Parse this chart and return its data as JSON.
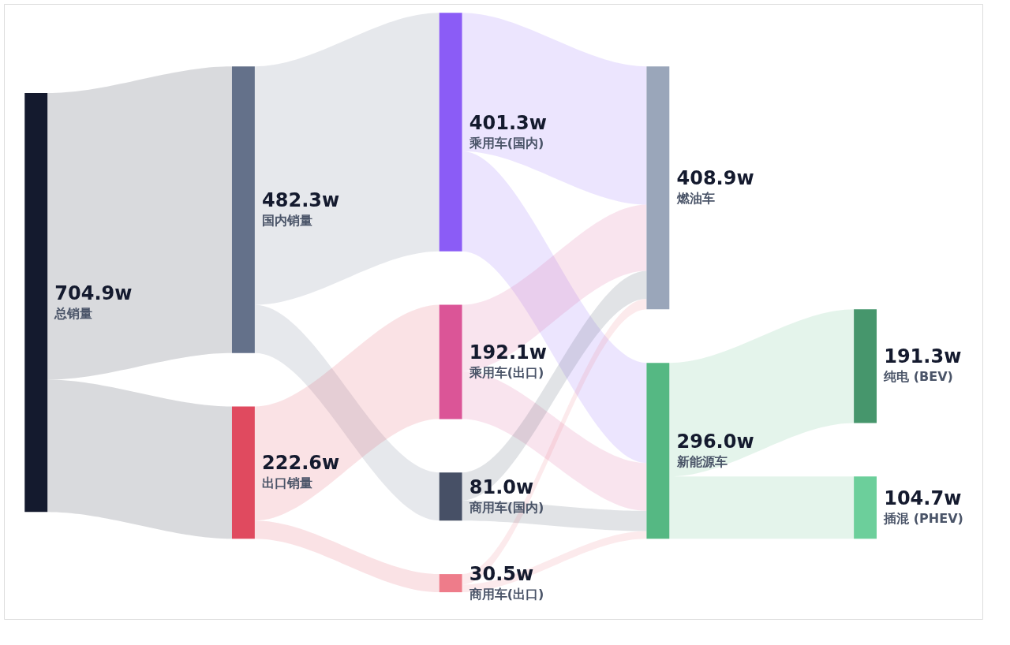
{
  "chart_data": {
    "type": "other",
    "categories": [
      "总销量",
      "国内销量",
      "出口销量",
      "乘用车(国内)",
      "乘用车(出口)",
      "商用车(国内)",
      "商用车(出口)",
      "燃油车",
      "新能源车",
      "纯电 (BEV)",
      "插混 (PHEV)"
    ],
    "values": [
      704.9,
      482.3,
      222.6,
      401.3,
      192.1,
      81.0,
      30.5,
      408.9,
      296.0,
      191.3,
      104.7
    ],
    "value_labels": [
      "704.9w",
      "482.3w",
      "222.6w",
      "401.3w",
      "192.1w",
      "81.0w",
      "30.5w",
      "408.9w",
      "296.0w",
      "191.3w",
      "104.7w"
    ],
    "colors": [
      "#141a2e",
      "#64718a",
      "#e04a5f",
      "#8b5cf6",
      "#db5597",
      "#475066",
      "#ee7c8a",
      "#9aa6ba",
      "#55b883",
      "#46966c",
      "#6ccf9b"
    ]
  }
}
